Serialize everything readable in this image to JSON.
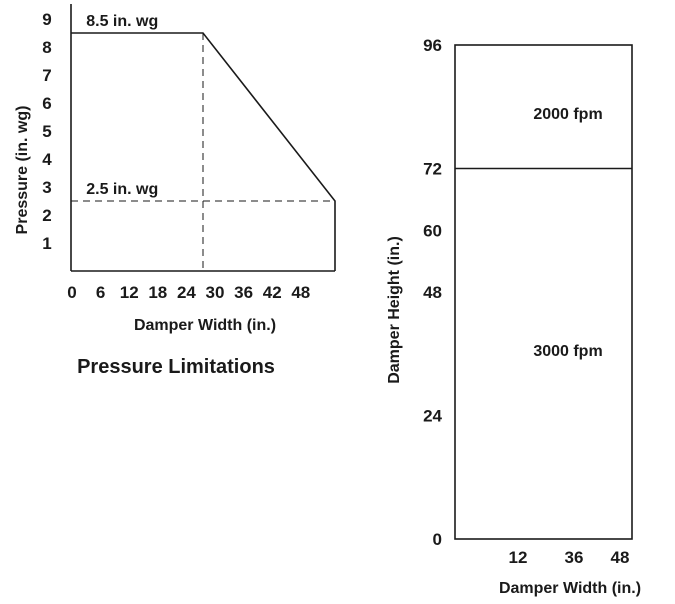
{
  "chart_data": [
    {
      "type": "line",
      "title": "Pressure Limitations",
      "xlabel": "Damper Width (in.)",
      "ylabel": "Pressure (in. wg)",
      "x_ticks": [
        "0",
        "6",
        "12",
        "18",
        "24",
        "30",
        "36",
        "42",
        "48"
      ],
      "y_ticks": [
        "1",
        "2",
        "3",
        "4",
        "5",
        "6",
        "7",
        "8",
        "9"
      ],
      "xlim": [
        0,
        52
      ],
      "ylim": [
        0,
        9
      ],
      "series": [
        {
          "x": [
            0,
            26,
            52
          ],
          "y": [
            8.5,
            8.5,
            2.5
          ]
        }
      ],
      "reference_lines": [
        {
          "orientation": "horizontal",
          "y": 2.5,
          "style": "dashed"
        },
        {
          "orientation": "vertical",
          "x": 26,
          "style": "dashed"
        }
      ],
      "annotations": [
        {
          "text": "8.5 in. wg",
          "x": 3,
          "y": 8.5
        },
        {
          "text": "2.5 in. wg",
          "x": 3,
          "y": 2.5
        }
      ],
      "grid": false
    },
    {
      "type": "area",
      "title": "",
      "xlabel": "Damper Width (in.)",
      "ylabel": "Damper Height (in.)",
      "x_ticks": [
        "12",
        "36",
        "48"
      ],
      "y_ticks": [
        "0",
        "24",
        "48",
        "60",
        "72",
        "96"
      ],
      "ylim": [
        0,
        96
      ],
      "regions": [
        {
          "label": "2000 fpm",
          "y_from": 72,
          "y_to": 96
        },
        {
          "label": "3000 fpm",
          "y_from": 0,
          "y_to": 72
        }
      ],
      "grid": false
    }
  ]
}
